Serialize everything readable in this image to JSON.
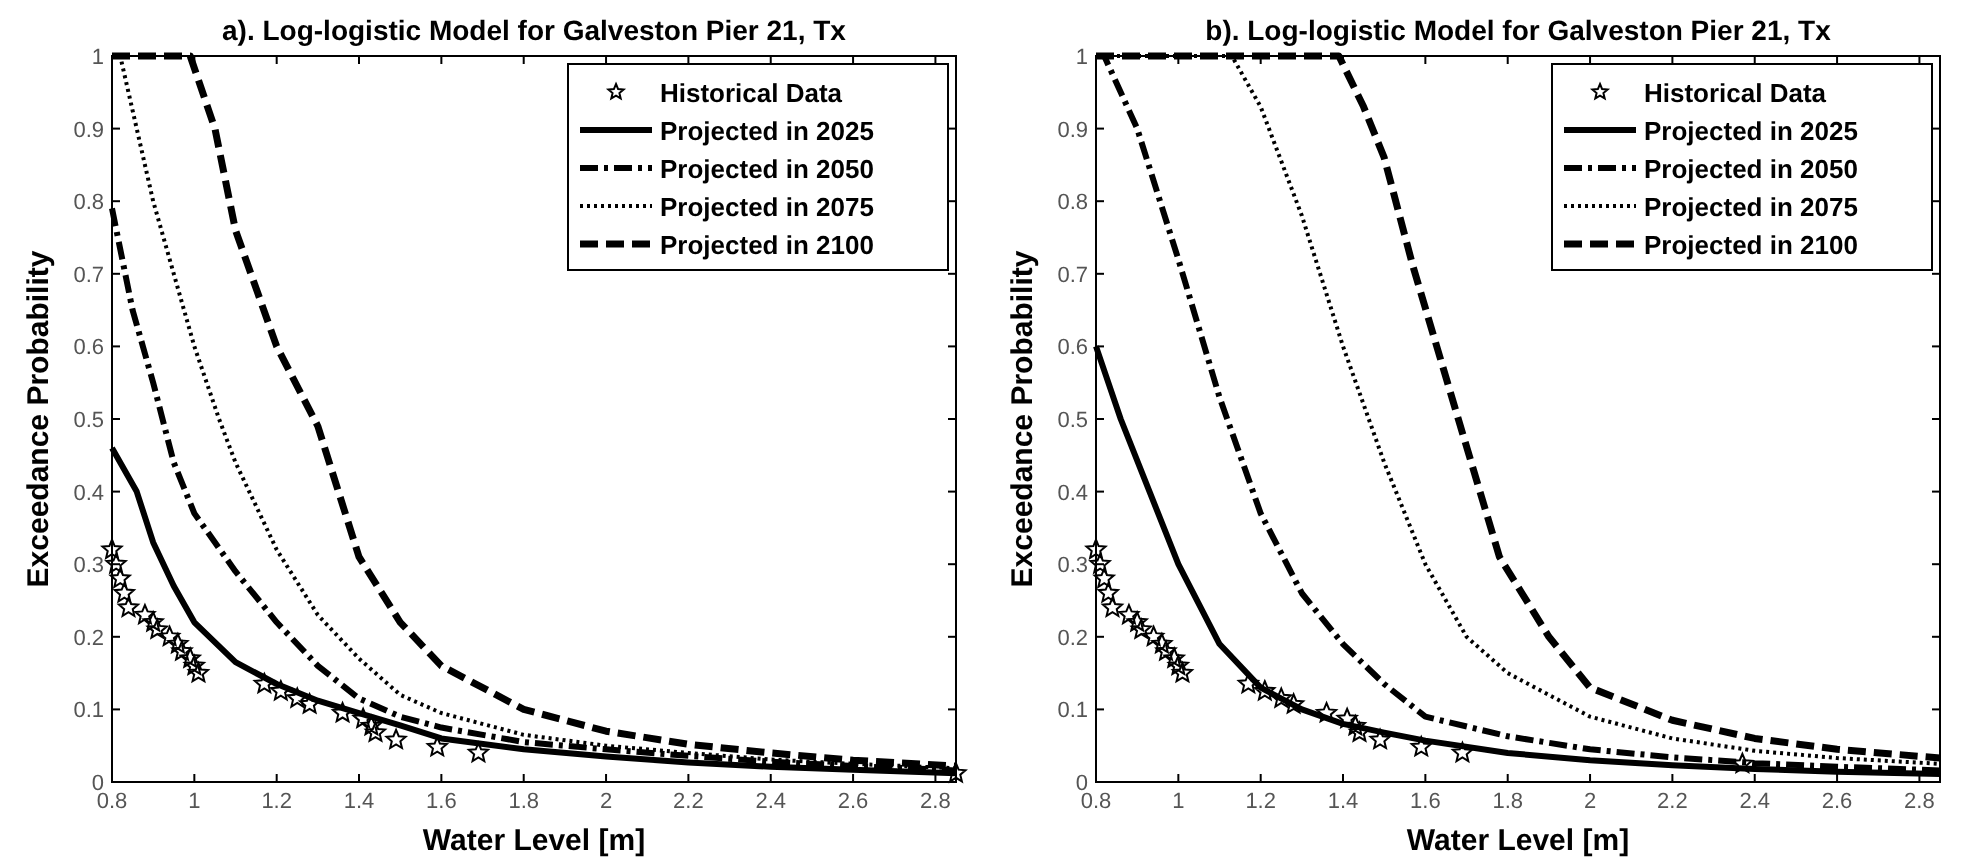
{
  "chart_data": [
    {
      "type": "line",
      "title": "a). Log-logistic Model for Galveston Pier 21, Tx",
      "xlabel": "Water Level [m]",
      "ylabel": "Exceedance Probability",
      "xlim": [
        0.8,
        2.85
      ],
      "ylim": [
        0,
        1
      ],
      "xticks": [
        0.8,
        1,
        1.2,
        1.4,
        1.6,
        1.8,
        2,
        2.2,
        2.4,
        2.6,
        2.8
      ],
      "yticks": [
        0,
        0.1,
        0.2,
        0.3,
        0.4,
        0.5,
        0.6,
        0.7,
        0.8,
        0.9,
        1
      ],
      "grid": false,
      "legend": "top right",
      "series": [
        {
          "name": "Historical Data",
          "type": "scatter",
          "marker": "star",
          "color": "#000000",
          "x": [
            0.8,
            0.81,
            0.82,
            0.83,
            0.84,
            0.88,
            0.9,
            0.91,
            0.94,
            0.96,
            0.97,
            0.99,
            1.0,
            1.01,
            1.17,
            1.21,
            1.25,
            1.28,
            1.36,
            1.41,
            1.43,
            1.44,
            1.49,
            1.59,
            1.69,
            2.85
          ],
          "values": [
            0.32,
            0.3,
            0.28,
            0.26,
            0.24,
            0.23,
            0.22,
            0.21,
            0.2,
            0.19,
            0.18,
            0.17,
            0.16,
            0.15,
            0.135,
            0.125,
            0.115,
            0.107,
            0.095,
            0.087,
            0.077,
            0.068,
            0.058,
            0.048,
            0.04,
            0.012
          ]
        },
        {
          "name": "Projected in 2025",
          "type": "line",
          "line_style": "solid",
          "color": "#000000",
          "x": [
            0.8,
            0.86,
            0.9,
            0.95,
            1.0,
            1.1,
            1.2,
            1.3,
            1.4,
            1.5,
            1.6,
            1.8,
            2.0,
            2.2,
            2.4,
            2.6,
            2.85
          ],
          "values": [
            0.46,
            0.4,
            0.33,
            0.27,
            0.22,
            0.165,
            0.135,
            0.112,
            0.095,
            0.078,
            0.06,
            0.045,
            0.035,
            0.027,
            0.021,
            0.017,
            0.012
          ]
        },
        {
          "name": "Projected in 2050",
          "type": "line",
          "line_style": "dashdot",
          "color": "#000000",
          "x": [
            0.8,
            0.85,
            0.9,
            0.95,
            1.0,
            1.1,
            1.2,
            1.3,
            1.4,
            1.5,
            1.6,
            1.8,
            2.0,
            2.2,
            2.4,
            2.6,
            2.85
          ],
          "values": [
            0.79,
            0.65,
            0.55,
            0.44,
            0.37,
            0.29,
            0.22,
            0.16,
            0.115,
            0.09,
            0.075,
            0.055,
            0.045,
            0.036,
            0.028,
            0.022,
            0.016
          ]
        },
        {
          "name": "Projected in 2075",
          "type": "line",
          "line_style": "dotted",
          "color": "#000000",
          "x": [
            0.8,
            0.82,
            0.9,
            1.0,
            1.06,
            1.1,
            1.2,
            1.3,
            1.4,
            1.5,
            1.6,
            1.8,
            2.0,
            2.2,
            2.4,
            2.6,
            2.85
          ],
          "values": [
            1,
            1,
            0.8,
            0.6,
            0.5,
            0.44,
            0.32,
            0.23,
            0.17,
            0.12,
            0.095,
            0.065,
            0.05,
            0.04,
            0.031,
            0.025,
            0.019
          ]
        },
        {
          "name": "Projected in 2100",
          "type": "line",
          "line_style": "dashed",
          "color": "#000000",
          "x": [
            0.8,
            0.99,
            1.05,
            1.1,
            1.2,
            1.3,
            1.4,
            1.5,
            1.6,
            1.8,
            2.0,
            2.2,
            2.4,
            2.6,
            2.85
          ],
          "values": [
            1,
            1,
            0.9,
            0.76,
            0.6,
            0.49,
            0.31,
            0.22,
            0.16,
            0.1,
            0.07,
            0.052,
            0.04,
            0.03,
            0.022
          ]
        }
      ]
    },
    {
      "type": "line",
      "title": "b). Log-logistic Model for Galveston Pier 21, Tx",
      "xlabel": "Water Level [m]",
      "ylabel": "Exceedance Probability",
      "xlim": [
        0.8,
        2.85
      ],
      "ylim": [
        0,
        1
      ],
      "xticks": [
        0.8,
        1,
        1.2,
        1.4,
        1.6,
        1.8,
        2,
        2.2,
        2.4,
        2.6,
        2.8
      ],
      "yticks": [
        0,
        0.1,
        0.2,
        0.3,
        0.4,
        0.5,
        0.6,
        0.7,
        0.8,
        0.9,
        1
      ],
      "grid": false,
      "legend": "top right",
      "series": [
        {
          "name": "Historical Data",
          "type": "scatter",
          "marker": "star",
          "color": "#000000",
          "x": [
            0.8,
            0.81,
            0.82,
            0.83,
            0.84,
            0.88,
            0.9,
            0.91,
            0.94,
            0.96,
            0.97,
            0.99,
            1.0,
            1.01,
            1.17,
            1.21,
            1.25,
            1.28,
            1.36,
            1.41,
            1.43,
            1.44,
            1.49,
            1.59,
            1.69,
            2.37
          ],
          "values": [
            0.32,
            0.3,
            0.28,
            0.26,
            0.24,
            0.23,
            0.22,
            0.21,
            0.2,
            0.19,
            0.18,
            0.17,
            0.16,
            0.15,
            0.135,
            0.125,
            0.115,
            0.107,
            0.095,
            0.087,
            0.077,
            0.068,
            0.058,
            0.048,
            0.04,
            0.025
          ]
        },
        {
          "name": "Projected in 2025",
          "type": "line",
          "line_style": "solid",
          "color": "#000000",
          "x": [
            0.8,
            0.86,
            0.93,
            1.0,
            1.1,
            1.2,
            1.3,
            1.4,
            1.5,
            1.6,
            1.8,
            2.0,
            2.2,
            2.4,
            2.6,
            2.85
          ],
          "values": [
            0.6,
            0.5,
            0.4,
            0.3,
            0.19,
            0.13,
            0.1,
            0.08,
            0.068,
            0.057,
            0.04,
            0.03,
            0.023,
            0.018,
            0.014,
            0.011
          ]
        },
        {
          "name": "Projected in 2050",
          "type": "line",
          "line_style": "dashdot",
          "color": "#000000",
          "x": [
            0.8,
            0.82,
            0.9,
            1.0,
            1.1,
            1.2,
            1.3,
            1.4,
            1.5,
            1.6,
            1.8,
            2.0,
            2.2,
            2.4,
            2.6,
            2.85
          ],
          "values": [
            1,
            1,
            0.9,
            0.72,
            0.53,
            0.37,
            0.26,
            0.19,
            0.135,
            0.09,
            0.063,
            0.045,
            0.034,
            0.026,
            0.021,
            0.016
          ]
        },
        {
          "name": "Projected in 2075",
          "type": "line",
          "line_style": "dotted",
          "color": "#000000",
          "x": [
            0.8,
            1.13,
            1.2,
            1.3,
            1.4,
            1.5,
            1.6,
            1.7,
            1.8,
            2.0,
            2.2,
            2.4,
            2.6,
            2.85
          ],
          "values": [
            1,
            1,
            0.93,
            0.78,
            0.6,
            0.44,
            0.3,
            0.2,
            0.15,
            0.09,
            0.06,
            0.043,
            0.033,
            0.025
          ]
        },
        {
          "name": "Projected in 2100",
          "type": "line",
          "line_style": "dashed",
          "color": "#000000",
          "x": [
            0.8,
            1.39,
            1.45,
            1.5,
            1.57,
            1.68,
            1.78,
            1.9,
            2.0,
            2.2,
            2.4,
            2.6,
            2.85
          ],
          "values": [
            1,
            1,
            0.93,
            0.86,
            0.71,
            0.5,
            0.31,
            0.2,
            0.13,
            0.085,
            0.06,
            0.045,
            0.033
          ]
        }
      ]
    }
  ]
}
